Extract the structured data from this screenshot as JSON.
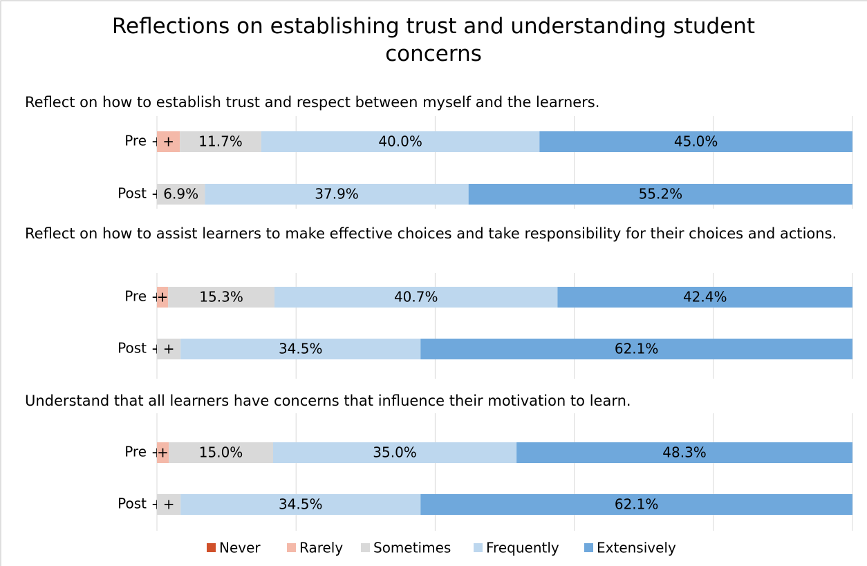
{
  "chart_data": [
    {
      "type": "stacked_barh",
      "title": "Reflections on establishing trust and understanding student concerns",
      "subtitle": "Reflect on how to establish trust and respect between myself and the learners.",
      "categories": [
        "Pre",
        "Post"
      ],
      "xlim": [
        0,
        100
      ],
      "xticks": [
        0,
        20,
        40,
        60,
        80,
        100
      ],
      "grid": true,
      "legend": "bottom",
      "series": [
        {
          "name": "Never",
          "color": "#d0502a",
          "values": [
            0,
            0
          ],
          "value_labels": [
            "+",
            "+"
          ]
        },
        {
          "name": "Rarely",
          "color": "#f4b9a9",
          "values": [
            3.3,
            0
          ],
          "value_labels": [
            "+",
            null
          ]
        },
        {
          "name": "Sometimes",
          "color": "#d9d9d9",
          "values": [
            11.7,
            6.9
          ],
          "value_labels": [
            "11.7%",
            "6.9%"
          ]
        },
        {
          "name": "Frequently",
          "color": "#bdd7ee",
          "values": [
            40.0,
            37.9
          ],
          "value_labels": [
            "40.0%",
            "37.9%"
          ]
        },
        {
          "name": "Extensively",
          "color": "#6fa8dc",
          "values": [
            45.0,
            55.2
          ],
          "value_labels": [
            "45.0%",
            "55.2%"
          ]
        }
      ]
    },
    {
      "type": "stacked_barh",
      "subtitle": "Reflect on how to assist learners to make effective choices and take responsibility for their choices and actions.",
      "categories": [
        "Pre",
        "Post"
      ],
      "xlim": [
        0,
        100
      ],
      "xticks": [
        0,
        20,
        40,
        60,
        80,
        100
      ],
      "grid": true,
      "series": [
        {
          "name": "Never",
          "color": "#d0502a",
          "values": [
            0,
            0
          ],
          "value_labels": [
            "+",
            "+"
          ]
        },
        {
          "name": "Rarely",
          "color": "#f4b9a9",
          "values": [
            1.6,
            0
          ],
          "value_labels": [
            "+",
            null
          ]
        },
        {
          "name": "Sometimes",
          "color": "#d9d9d9",
          "values": [
            15.3,
            3.4
          ],
          "value_labels": [
            "15.3%",
            "+"
          ]
        },
        {
          "name": "Frequently",
          "color": "#bdd7ee",
          "values": [
            40.7,
            34.5
          ],
          "value_labels": [
            "40.7%",
            "34.5%"
          ]
        },
        {
          "name": "Extensively",
          "color": "#6fa8dc",
          "values": [
            42.4,
            62.1
          ],
          "value_labels": [
            "42.4%",
            "62.1%"
          ]
        }
      ]
    },
    {
      "type": "stacked_barh",
      "subtitle": "Understand that all learners have concerns that influence their motivation to learn.",
      "categories": [
        "Pre",
        "Post"
      ],
      "xlim": [
        0,
        100
      ],
      "xticks": [
        0,
        20,
        40,
        60,
        80,
        100
      ],
      "grid": true,
      "series": [
        {
          "name": "Never",
          "color": "#d0502a",
          "values": [
            0,
            0
          ],
          "value_labels": [
            "+",
            "+"
          ]
        },
        {
          "name": "Rarely",
          "color": "#f4b9a9",
          "values": [
            1.7,
            0
          ],
          "value_labels": [
            "+",
            null
          ]
        },
        {
          "name": "Sometimes",
          "color": "#d9d9d9",
          "values": [
            15.0,
            3.4
          ],
          "value_labels": [
            "15.0%",
            "+"
          ]
        },
        {
          "name": "Frequently",
          "color": "#bdd7ee",
          "values": [
            35.0,
            34.5
          ],
          "value_labels": [
            "35.0%",
            "34.5%"
          ]
        },
        {
          "name": "Extensively",
          "color": "#6fa8dc",
          "values": [
            48.3,
            62.1
          ],
          "value_labels": [
            "48.3%",
            "62.1%"
          ]
        }
      ]
    }
  ]
}
